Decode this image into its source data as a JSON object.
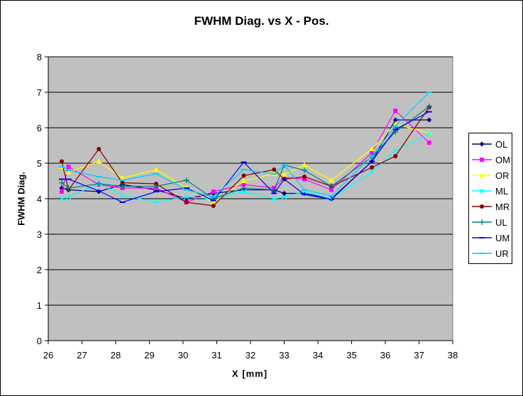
{
  "chart_data": {
    "type": "line",
    "title": "FWHM Diag. vs X - Pos.",
    "xlabel": "X [mm]",
    "ylabel": "FWHM Diag.",
    "xlim": [
      26,
      38
    ],
    "ylim": [
      0,
      8
    ],
    "x_ticks": [
      26,
      27,
      28,
      29,
      30,
      31,
      32,
      33,
      34,
      35,
      36,
      37,
      38
    ],
    "y_ticks": [
      0,
      1,
      2,
      3,
      4,
      5,
      6,
      7,
      8
    ],
    "grid": "horizontal",
    "legend": "right",
    "plot_background": "#c0c0c0",
    "x": [
      26.4,
      26.6,
      27.5,
      28.2,
      29.2,
      30.1,
      30.9,
      31.8,
      32.7,
      33.0,
      33.6,
      34.4,
      35.6,
      36.3,
      37.3
    ],
    "series": [
      {
        "name": "OL",
        "color": "#000080",
        "marker": "diamond",
        "values": [
          4.3,
          4.25,
          4.2,
          4.4,
          4.25,
          4.0,
          4.15,
          4.25,
          4.25,
          4.15,
          4.15,
          4.0,
          5.05,
          6.22,
          6.22
        ]
      },
      {
        "name": "OM",
        "color": "#ff00ff",
        "marker": "square",
        "values": [
          4.2,
          4.9,
          4.4,
          4.3,
          4.3,
          3.9,
          4.2,
          4.4,
          4.3,
          4.6,
          4.55,
          4.25,
          5.3,
          6.48,
          5.58
        ]
      },
      {
        "name": "OR",
        "color": "#ffff00",
        "marker": "triangle",
        "values": [
          4.9,
          4.75,
          5.05,
          4.58,
          4.82,
          4.3,
          3.9,
          4.5,
          4.7,
          4.68,
          4.95,
          4.52,
          5.4,
          6.1,
          5.85
        ]
      },
      {
        "name": "ML",
        "color": "#00ffff",
        "marker": "x",
        "values": [
          4.0,
          4.05,
          4.42,
          4.1,
          3.9,
          4.05,
          4.0,
          4.2,
          4.0,
          4.05,
          4.2,
          4.0,
          4.75,
          5.35,
          5.83
        ]
      },
      {
        "name": "MR",
        "color": "#800000",
        "marker": "circle",
        "values": [
          5.05,
          4.25,
          5.4,
          4.45,
          4.42,
          3.9,
          3.8,
          4.65,
          4.82,
          4.55,
          4.62,
          4.35,
          4.88,
          5.2,
          6.58
        ]
      },
      {
        "name": "UL",
        "color": "#008080",
        "marker": "plus",
        "values": [
          4.45,
          4.3,
          4.42,
          4.35,
          4.35,
          4.52,
          4.0,
          4.3,
          4.25,
          4.95,
          4.8,
          4.35,
          5.18,
          5.88,
          6.6
        ]
      },
      {
        "name": "UM",
        "color": "#0000ff",
        "marker": "dash",
        "values": [
          4.55,
          4.55,
          4.22,
          3.9,
          4.2,
          4.3,
          3.95,
          5.03,
          4.15,
          4.55,
          4.12,
          3.98,
          5.05,
          5.95,
          6.45
        ]
      },
      {
        "name": "UR",
        "color": "#00ccff",
        "marker": "dash",
        "values": [
          4.9,
          4.8,
          4.62,
          4.52,
          4.7,
          4.25,
          4.05,
          4.82,
          4.7,
          4.95,
          4.25,
          4.08,
          5.2,
          6.05,
          7.0
        ]
      }
    ]
  }
}
